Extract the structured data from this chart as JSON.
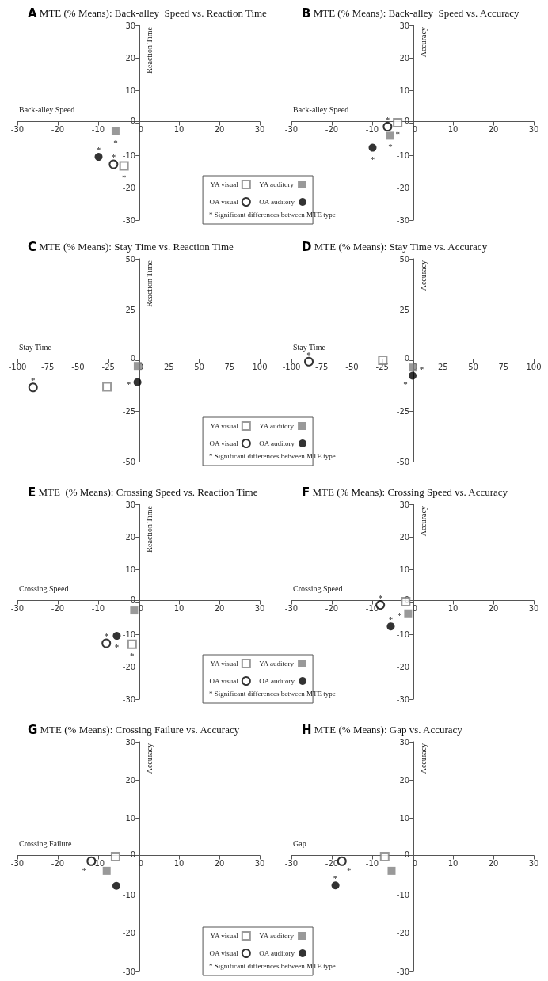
{
  "chart_data": [
    {
      "type": "scatter",
      "title": "A MTE (% Means): Back-alley  Speed vs. Reaction Time",
      "xlabel": "Back-alley Speed",
      "ylabel": "Reaction Time",
      "xlim": [
        -30,
        30
      ],
      "ylim": [
        -30,
        30
      ],
      "xticks": [
        -30,
        -20,
        -10,
        0,
        10,
        20,
        30
      ],
      "yticks": [
        -30,
        -20,
        -10,
        0,
        10,
        20,
        30
      ],
      "legend": "bottom right",
      "series": [
        {
          "name": "YA visual",
          "color": "#808080",
          "marker": "square-open",
          "x": [
            -3.6
          ],
          "values": [
            -13.3
          ]
        },
        {
          "name": "YA auditory",
          "color": "#808080",
          "marker": "square",
          "x": [
            -5.7
          ],
          "values": [
            -2.6
          ]
        },
        {
          "name": "OA visual",
          "color": "#000000",
          "marker": "circle-open",
          "x": [
            -6.2
          ],
          "values": [
            -12.8
          ]
        },
        {
          "name": "OA auditory",
          "color": "#000000",
          "marker": "circle",
          "x": [
            -9.9
          ],
          "values": [
            -10.5
          ]
        }
      ],
      "annotations": [
        "* Significant differences between MTE type",
        {
          "text": "*",
          "x": -5.7,
          "y": -2.6
        },
        {
          "text": "*",
          "x": -9.9,
          "y": -10.5
        },
        {
          "text": "*",
          "x": -6.2,
          "y": -12.8
        },
        {
          "text": "*",
          "x": -3.6,
          "y": -13.3
        }
      ]
    },
    {
      "type": "scatter",
      "title": "B MTE (% Means): Back-alley  Speed vs. Accuracy",
      "xlabel": "Back-alley Speed",
      "ylabel": "Accuracy",
      "xlim": [
        -30,
        30
      ],
      "ylim": [
        -30,
        30
      ],
      "xticks": [
        -30,
        -20,
        -10,
        0,
        10,
        20,
        30
      ],
      "yticks": [
        -30,
        -20,
        -10,
        0,
        10,
        20,
        30
      ],
      "series": [
        {
          "color": "#808080",
          "marker": "square-open",
          "x": [
            -3.7
          ],
          "values": [
            0
          ]
        },
        {
          "color": "#808080",
          "marker": "square",
          "x": [
            -5.5
          ],
          "values": [
            -4.0
          ]
        },
        {
          "color": "#000000",
          "marker": "circle-open",
          "x": [
            -6.2
          ],
          "values": [
            -1.2
          ]
        },
        {
          "color": "#000000",
          "marker": "circle",
          "x": [
            -9.9
          ],
          "values": [
            -7.7
          ]
        }
      ],
      "annotations": [
        {
          "text": "*",
          "x": -3.7,
          "y": 0
        },
        {
          "text": "*",
          "x": -6.2,
          "y": -1.2
        },
        {
          "text": "*",
          "x": -5.5,
          "y": -4.0
        },
        {
          "text": "*",
          "x": -9.9,
          "y": -7.7
        }
      ]
    },
    {
      "type": "scatter",
      "title": "C MTE (% Means): Stay Time vs. Reaction Time",
      "xlabel": "Stay Time",
      "ylabel": "Reaction Time",
      "xlim": [
        -100,
        100
      ],
      "ylim": [
        -50,
        50
      ],
      "xticks": [
        -100,
        -75,
        -50,
        -25,
        0,
        25,
        50,
        75,
        100
      ],
      "yticks": [
        -50,
        -25,
        0,
        25,
        50
      ],
      "legend": "bottom right",
      "series": [
        {
          "name": "YA visual",
          "color": "#808080",
          "marker": "square-open",
          "x": [
            -26.1
          ],
          "values": [
            -13.1
          ]
        },
        {
          "name": "YA auditory",
          "color": "#808080",
          "marker": "square",
          "x": [
            -0.7
          ],
          "values": [
            -2.8
          ]
        },
        {
          "name": "OA visual",
          "color": "#000000",
          "marker": "circle-open",
          "x": [
            -87.1
          ],
          "values": [
            -13.4
          ]
        },
        {
          "name": "OA auditory",
          "color": "#000000",
          "marker": "circle",
          "x": [
            -0.9
          ],
          "values": [
            -10.8
          ]
        }
      ],
      "annotations": [
        "* Significant differences between MTE type",
        {
          "text": "*",
          "x": -87.1,
          "y": -13.4
        },
        {
          "text": "*",
          "x": -0.9,
          "y": -10.8
        }
      ]
    },
    {
      "type": "scatter",
      "title": "D MTE (% Means): Stay Time vs. Accuracy",
      "xlabel": "Stay Time",
      "ylabel": "Accuracy",
      "xlim": [
        -100,
        100
      ],
      "ylim": [
        -50,
        50
      ],
      "xticks": [
        -100,
        -75,
        -50,
        -25,
        0,
        25,
        50,
        75,
        100
      ],
      "yticks": [
        -50,
        -25,
        0,
        25,
        50
      ],
      "series": [
        {
          "color": "#808080",
          "marker": "square-open",
          "x": [
            -24.6
          ],
          "values": [
            0
          ]
        },
        {
          "color": "#808080",
          "marker": "square",
          "x": [
            0.4
          ],
          "values": [
            -3.6
          ]
        },
        {
          "color": "#000000",
          "marker": "circle-open",
          "x": [
            -85.6
          ],
          "values": [
            -0.7
          ]
        },
        {
          "color": "#000000",
          "marker": "circle",
          "x": [
            0
          ],
          "values": [
            -7.6
          ]
        }
      ],
      "annotations": [
        {
          "text": "*",
          "x": -85.6,
          "y": -0.7
        },
        {
          "text": "*",
          "x": 0.4,
          "y": -3.6
        },
        {
          "text": "*",
          "x": 0,
          "y": -7.6
        }
      ]
    },
    {
      "type": "scatter",
      "title": "E MTE  (% Means): Crossing Speed vs. Reaction Time",
      "xlabel": "Crossing Speed",
      "ylabel": "Reaction Time",
      "xlim": [
        -30,
        30
      ],
      "ylim": [
        -30,
        30
      ],
      "xticks": [
        -30,
        -20,
        -10,
        0,
        10,
        20,
        30
      ],
      "yticks": [
        -30,
        -20,
        -10,
        0,
        10,
        20,
        30
      ],
      "legend": "bottom right",
      "series": [
        {
          "name": "YA visual",
          "color": "#808080",
          "marker": "square-open",
          "x": [
            -1.6
          ],
          "values": [
            -13.1
          ]
        },
        {
          "name": "YA auditory",
          "color": "#808080",
          "marker": "square",
          "x": [
            -1.1
          ],
          "values": [
            -2.7
          ]
        },
        {
          "name": "OA visual",
          "color": "#000000",
          "marker": "circle-open",
          "x": [
            -8.0
          ],
          "values": [
            -12.8
          ]
        },
        {
          "name": "OA auditory",
          "color": "#000000",
          "marker": "circle",
          "x": [
            -5.4
          ],
          "values": [
            -10.5
          ]
        }
      ],
      "annotations": [
        "* Significant differences between MTE type",
        {
          "text": "*",
          "x": -5.4,
          "y": -10.5
        },
        {
          "text": "*",
          "x": -8.0,
          "y": -12.8
        },
        {
          "text": "*",
          "x": -1.6,
          "y": -13.1
        }
      ]
    },
    {
      "type": "scatter",
      "title": "F MTE (% Means): Crossing Speed vs. Accuracy",
      "xlabel": "Crossing Speed",
      "ylabel": "Accuracy",
      "xlim": [
        -30,
        30
      ],
      "ylim": [
        -30,
        30
      ],
      "xticks": [
        -30,
        -20,
        -10,
        0,
        10,
        20,
        30
      ],
      "yticks": [
        -30,
        -20,
        -10,
        0,
        10,
        20,
        30
      ],
      "series": [
        {
          "color": "#808080",
          "marker": "square-open",
          "x": [
            -1.7
          ],
          "values": [
            0
          ]
        },
        {
          "color": "#808080",
          "marker": "square",
          "x": [
            -1.1
          ],
          "values": [
            -3.6
          ]
        },
        {
          "color": "#000000",
          "marker": "circle-open",
          "x": [
            -8.0
          ],
          "values": [
            -1.0
          ]
        },
        {
          "color": "#000000",
          "marker": "circle",
          "x": [
            -5.4
          ],
          "values": [
            -7.6
          ]
        }
      ],
      "annotations": [
        {
          "text": "*",
          "x": -8.0,
          "y": -1.0
        },
        {
          "text": "*",
          "x": -1.1,
          "y": -3.6
        },
        {
          "text": "*",
          "x": -5.4,
          "y": -7.6
        }
      ]
    },
    {
      "type": "scatter",
      "title": "G MTE (% Means): Crossing Failure vs. Accuracy",
      "xlabel": "Crossing Failure",
      "ylabel": "Accuracy",
      "xlim": [
        -30,
        30
      ],
      "ylim": [
        -30,
        30
      ],
      "xticks": [
        -30,
        -20,
        -10,
        0,
        10,
        20,
        30
      ],
      "yticks": [
        -30,
        -20,
        -10,
        0,
        10,
        20,
        30
      ],
      "legend": "bottom right",
      "series": [
        {
          "name": "YA visual",
          "color": "#808080",
          "marker": "square-open",
          "x": [
            -5.7
          ],
          "values": [
            0
          ]
        },
        {
          "name": "YA auditory",
          "color": "#808080",
          "marker": "square",
          "x": [
            -7.9
          ],
          "values": [
            -3.7
          ]
        },
        {
          "name": "OA visual",
          "color": "#000000",
          "marker": "circle-open",
          "x": [
            -11.7
          ],
          "values": [
            -1.2
          ]
        },
        {
          "name": "OA auditory",
          "color": "#000000",
          "marker": "circle",
          "x": [
            -5.5
          ],
          "values": [
            -7.6
          ]
        }
      ],
      "annotations": [
        "* Significant differences between MTE type",
        {
          "text": "*",
          "x": -11.7,
          "y": -1.2
        }
      ]
    },
    {
      "type": "scatter",
      "title": "H MTE (% Means): Gap vs. Accuracy",
      "xlabel": "Gap",
      "ylabel": "Accuracy",
      "xlim": [
        -30,
        30
      ],
      "ylim": [
        -30,
        30
      ],
      "xticks": [
        -30,
        -20,
        -10,
        0,
        10,
        20,
        30
      ],
      "yticks": [
        -30,
        -20,
        -10,
        0,
        10,
        20,
        30
      ],
      "series": [
        {
          "color": "#808080",
          "marker": "square-open",
          "x": [
            -6.9
          ],
          "values": [
            0
          ]
        },
        {
          "color": "#808080",
          "marker": "square",
          "x": [
            -5.2
          ],
          "values": [
            -3.7
          ]
        },
        {
          "color": "#000000",
          "marker": "circle-open",
          "x": [
            -17.5
          ],
          "values": [
            -1.2
          ]
        },
        {
          "color": "#000000",
          "marker": "circle",
          "x": [
            -19.1
          ],
          "values": [
            -7.5
          ]
        }
      ],
      "annotations": [
        {
          "text": "*",
          "x": -17.5,
          "y": -1.2
        },
        {
          "text": "*",
          "x": -19.1,
          "y": -7.5
        }
      ]
    }
  ]
}
